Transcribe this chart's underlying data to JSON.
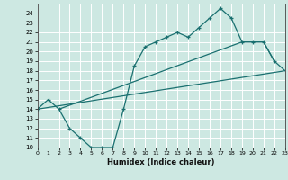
{
  "bg_color": "#cde8e2",
  "grid_color": "#ffffff",
  "line_color": "#1a7070",
  "xlabel": "Humidex (Indice chaleur)",
  "ylim": [
    10,
    25
  ],
  "xlim": [
    0,
    23
  ],
  "yticks": [
    10,
    11,
    12,
    13,
    14,
    15,
    16,
    17,
    18,
    19,
    20,
    21,
    22,
    23,
    24
  ],
  "xticks": [
    0,
    1,
    2,
    3,
    4,
    5,
    6,
    7,
    8,
    9,
    10,
    11,
    12,
    13,
    14,
    15,
    16,
    17,
    18,
    19,
    20,
    21,
    22,
    23
  ],
  "line1_x": [
    0,
    1,
    2,
    3,
    4,
    5,
    6,
    7,
    8,
    9,
    10,
    11,
    12,
    13,
    14,
    15,
    16,
    17,
    18,
    19,
    20,
    21,
    22
  ],
  "line1_y": [
    14,
    15,
    14,
    12,
    11,
    10,
    10,
    10,
    14,
    18.5,
    20.5,
    21,
    21.5,
    22,
    21.5,
    22.5,
    23.5,
    24.5,
    23.5,
    21,
    21,
    21,
    19
  ],
  "line2_x": [
    0,
    23
  ],
  "line2_y": [
    14,
    18
  ],
  "line3_x": [
    2,
    19,
    20,
    21,
    22,
    23
  ],
  "line3_y": [
    14,
    21,
    21,
    21,
    19,
    18
  ]
}
